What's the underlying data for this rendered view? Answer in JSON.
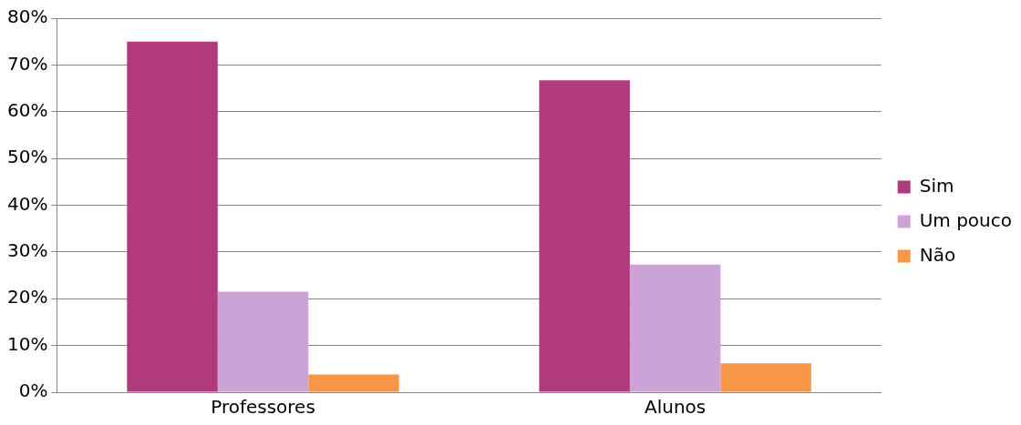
{
  "chart_data": {
    "type": "bar",
    "categories": [
      "Professores",
      "Alunos"
    ],
    "series": [
      {
        "name": "Sim",
        "color": "#b03a7c",
        "values": [
          75,
          66.7
        ]
      },
      {
        "name": "Um pouco",
        "color": "#cca3d6",
        "values": [
          21.5,
          27.3
        ]
      },
      {
        "name": "Não",
        "color": "#f79646",
        "values": [
          3.8,
          6.2
        ]
      }
    ],
    "ylim": [
      0,
      80
    ],
    "yticks": [
      {
        "value": 0,
        "label": "0%"
      },
      {
        "value": 10,
        "label": "10%"
      },
      {
        "value": 20,
        "label": "20%"
      },
      {
        "value": 30,
        "label": "30%"
      },
      {
        "value": 40,
        "label": "40%"
      },
      {
        "value": 50,
        "label": "50%"
      },
      {
        "value": 60,
        "label": "60%"
      },
      {
        "value": 70,
        "label": "70%"
      },
      {
        "value": 80,
        "label": "80%"
      }
    ],
    "grid": "y",
    "legend": "right"
  }
}
